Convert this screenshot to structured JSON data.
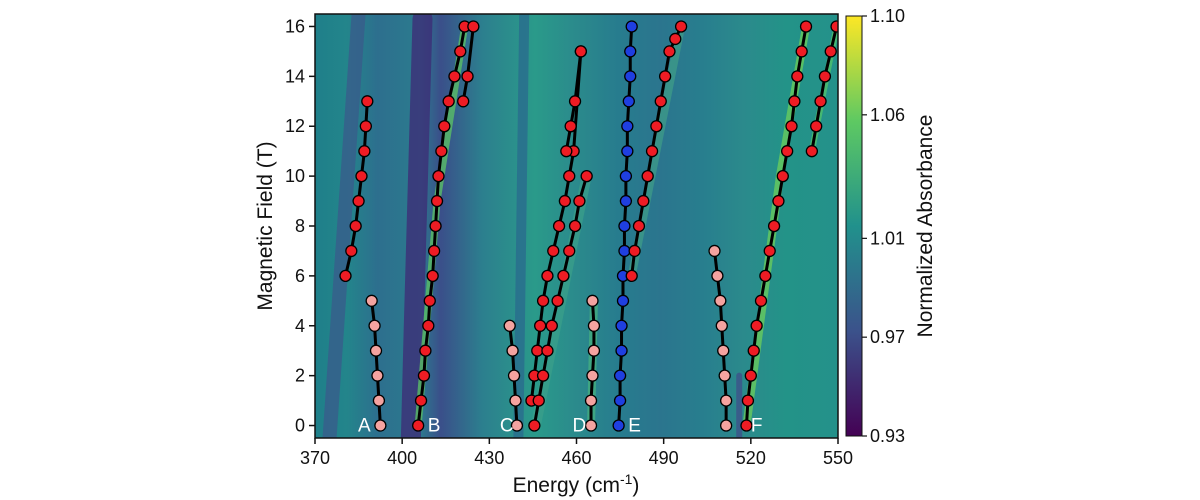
{
  "chart_data": {
    "type": "scatter",
    "title": "",
    "xlabel": "Energy (cm",
    "xlabel_sup": "-1",
    "xlabel_close": ")",
    "ylabel": "Magnetic Field (T)",
    "xlim": [
      370,
      550
    ],
    "ylim": [
      -0.5,
      16.5
    ],
    "xticks": [
      370,
      400,
      430,
      460,
      490,
      520,
      550
    ],
    "yticks": [
      0,
      2,
      4,
      6,
      8,
      10,
      12,
      14,
      16
    ],
    "grid": false,
    "heatmap": {
      "colormap": "viridis",
      "description_colors": [
        "#440154",
        "#3b528b",
        "#21918c",
        "#5ec962",
        "#fde725"
      ]
    },
    "colorbar": {
      "label": "Normalized Absorbance",
      "range": [
        0.93,
        1.1
      ],
      "tick_labels": [
        "1.10",
        "1.06",
        "1.01",
        "0.97",
        "0.93"
      ],
      "tick_values": [
        1.1,
        1.06,
        1.01,
        0.97,
        0.93
      ]
    },
    "annotations": [
      {
        "text": "A",
        "x": 387,
        "y": 0
      },
      {
        "text": "B",
        "x": 411,
        "y": 0
      },
      {
        "text": "C",
        "x": 436,
        "y": 0
      },
      {
        "text": "D",
        "x": 461,
        "y": 0
      },
      {
        "text": "E",
        "x": 480,
        "y": 0
      },
      {
        "text": "F",
        "x": 522,
        "y": 0
      }
    ],
    "marker_colors": {
      "red": "#ee1c24",
      "pink": "#f4a3a0",
      "blue": "#1f3fe0"
    },
    "series": [
      {
        "color": "red",
        "x": [
          380.5,
          382.5,
          384.0,
          385.0,
          386.0,
          387.0,
          387.5,
          388.0
        ],
        "y": [
          6,
          7,
          8,
          9,
          10,
          11,
          12,
          13
        ]
      },
      {
        "color": "pink",
        "x": [
          389.5,
          390.5,
          391.0,
          391.5,
          392.0,
          392.5
        ],
        "y": [
          5,
          4,
          3,
          2,
          1,
          0
        ]
      },
      {
        "color": "red",
        "x": [
          405.5,
          406.5,
          407.5,
          408.0,
          409.0,
          409.5,
          410.5,
          411.0,
          411.5,
          412.0,
          412.5,
          413.5,
          414.5,
          416.0,
          418.0,
          420.0,
          421.5
        ],
        "y": [
          0,
          1,
          2,
          3,
          4,
          5,
          6,
          7,
          8,
          9,
          10,
          11,
          12,
          13,
          14,
          15,
          16
        ]
      },
      {
        "color": "red",
        "x": [
          421.0,
          422.5,
          424.5
        ],
        "y": [
          13,
          14,
          16
        ]
      },
      {
        "color": "pink",
        "x": [
          437.0,
          438.0,
          438.5,
          439.0,
          439.5
        ],
        "y": [
          4,
          3,
          2,
          1,
          0
        ]
      },
      {
        "color": "red",
        "x": [
          444.5,
          445.5,
          446.5,
          447.5,
          448.5,
          450.0,
          452.0,
          454.0,
          456.0,
          457.5,
          459.0,
          461.5
        ],
        "y": [
          1,
          2,
          3,
          4,
          5,
          6,
          7,
          8,
          9,
          10,
          11,
          15
        ]
      },
      {
        "color": "red",
        "x": [
          445.5,
          447.0,
          448.5,
          450.0,
          451.5,
          453.5,
          455.5,
          457.5,
          459.5,
          461.0,
          463.5
        ],
        "y": [
          0,
          1,
          2,
          3,
          4,
          5,
          6,
          7,
          8,
          9,
          10
        ]
      },
      {
        "color": "red",
        "x": [
          456.5,
          458.0,
          459.5,
          461.5
        ],
        "y": [
          11,
          12,
          13,
          15
        ]
      },
      {
        "color": "pink",
        "x": [
          465.5,
          466.0,
          466.0,
          465.5,
          465.0,
          465.0
        ],
        "y": [
          5,
          4,
          3,
          2,
          1,
          0
        ]
      },
      {
        "color": "blue",
        "x": [
          474.5,
          475.0,
          475.0,
          475.5,
          475.5,
          476.0,
          476.0,
          476.5,
          476.5,
          477.0,
          477.0,
          477.5,
          477.5,
          478.0,
          478.5,
          478.5,
          479.0
        ],
        "y": [
          0,
          1,
          2,
          3,
          4,
          5,
          6,
          7,
          8,
          9,
          10,
          11,
          12,
          13,
          14,
          15,
          16
        ]
      },
      {
        "color": "red",
        "x": [
          479.0,
          480.0,
          481.5,
          483.0,
          484.5,
          486.0,
          487.5,
          489.0,
          490.5,
          492.0,
          494.0,
          496.0
        ],
        "y": [
          6,
          7,
          8,
          9,
          10,
          11,
          12,
          13,
          14,
          15,
          15.5,
          16
        ]
      },
      {
        "color": "pink",
        "x": [
          507.5,
          508.5,
          509.5,
          510.0,
          510.5,
          511.0,
          511.5,
          511.5
        ],
        "y": [
          7,
          6,
          5,
          4,
          3,
          2,
          1,
          0
        ]
      },
      {
        "color": "red",
        "x": [
          518.5,
          519.0,
          520.0,
          521.0,
          522.0,
          523.5,
          525.0,
          526.5,
          528.0,
          529.5,
          531.0,
          532.5,
          534.0,
          535.0,
          536.0,
          537.5,
          539.0
        ],
        "y": [
          0,
          1,
          2,
          3,
          4,
          5,
          6,
          7,
          8,
          9,
          10,
          11,
          12,
          13,
          14,
          15,
          16
        ]
      },
      {
        "color": "red",
        "x": [
          541.0,
          542.5,
          544.0,
          545.5,
          547.5,
          549.5
        ],
        "y": [
          11,
          12,
          13,
          14,
          15,
          16
        ]
      }
    ]
  }
}
